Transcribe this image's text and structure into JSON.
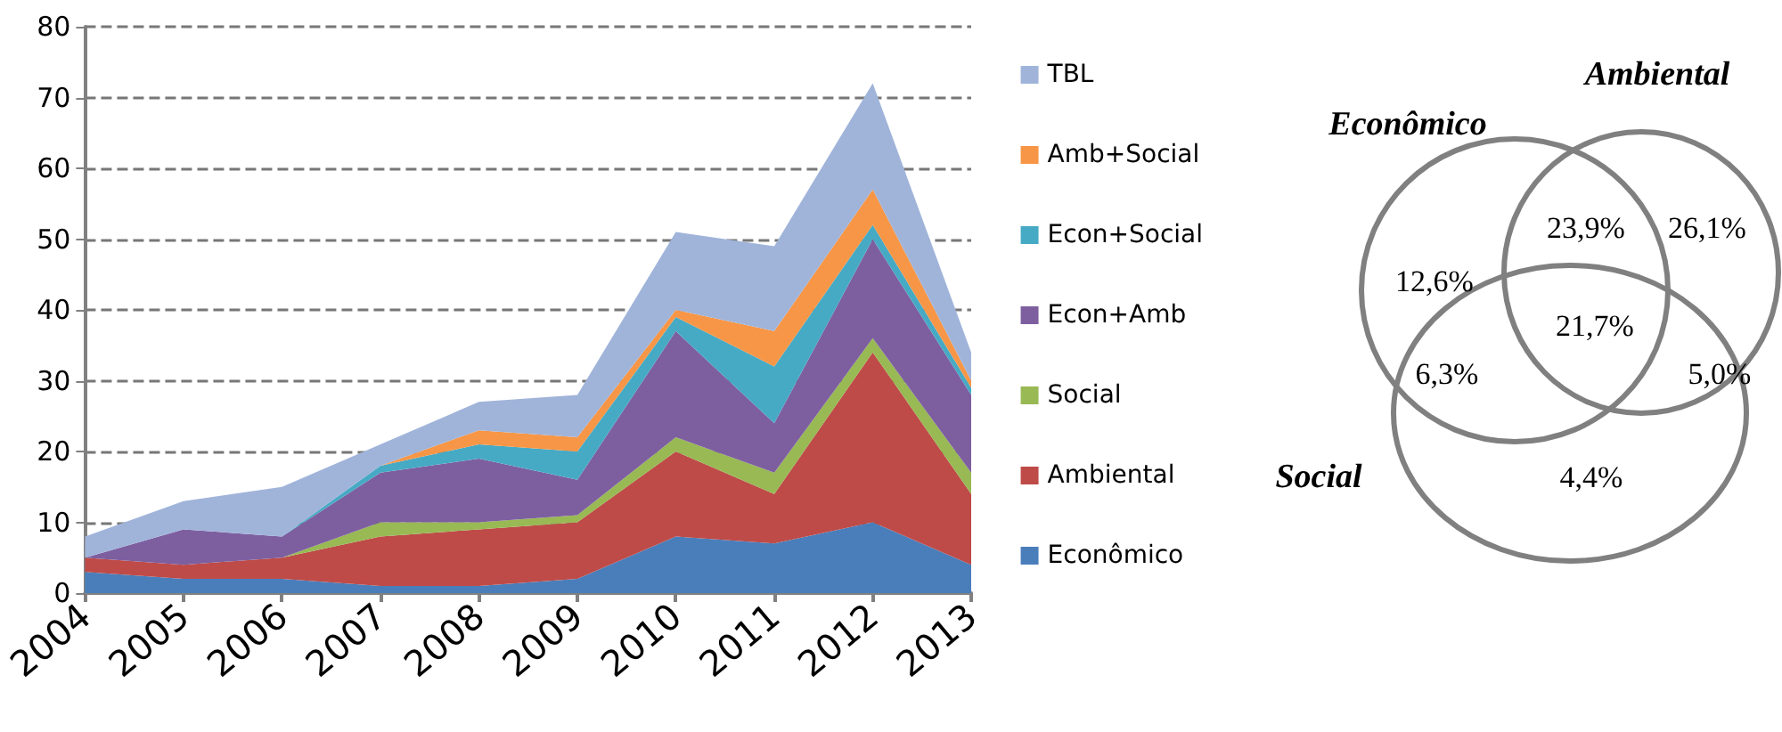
{
  "chart_data": [
    {
      "type": "area",
      "stacked": true,
      "categories": [
        "2004",
        "2005",
        "2006",
        "2007",
        "2008",
        "2009",
        "2010",
        "2011",
        "2012",
        "2013"
      ],
      "ylim": [
        0,
        80
      ],
      "yticks": [
        0,
        10,
        20,
        30,
        40,
        50,
        60,
        70,
        80
      ],
      "grid": "y",
      "legend": "right",
      "marker": "none",
      "series": [
        {
          "name": "Econômico",
          "color": "#4a7ebb",
          "values": [
            3,
            2,
            2,
            1,
            1,
            2,
            8,
            7,
            10,
            4
          ]
        },
        {
          "name": "Ambiental",
          "color": "#be4b48",
          "values": [
            2,
            2,
            3,
            7,
            8,
            8,
            12,
            7,
            24,
            10
          ]
        },
        {
          "name": "Social",
          "color": "#98b954",
          "values": [
            0,
            0,
            0,
            2,
            1,
            1,
            2,
            3,
            2,
            3
          ]
        },
        {
          "name": "Econ+Amb",
          "color": "#7d5fa0",
          "values": [
            0,
            5,
            3,
            7,
            9,
            5,
            15,
            7,
            14,
            11
          ]
        },
        {
          "name": "Econ+Social",
          "color": "#46aac5",
          "values": [
            0,
            0,
            0,
            1,
            2,
            4,
            2,
            8,
            2,
            1
          ]
        },
        {
          "name": "Amb+Social",
          "color": "#f79646",
          "values": [
            0,
            0,
            0,
            0,
            2,
            2,
            1,
            5,
            5,
            1
          ]
        },
        {
          "name": "TBL",
          "color": "#a0b4da",
          "values": [
            3,
            4,
            7,
            3,
            4,
            6,
            11,
            12,
            15,
            4
          ]
        }
      ]
    },
    {
      "type": "other",
      "annotations": [
        "Econômico",
        "Ambiental",
        "Social",
        "12,6%",
        "23,9%",
        "26,1%",
        "6,3%",
        "21,7%",
        "5,0%",
        "4,4%"
      ]
    }
  ]
}
